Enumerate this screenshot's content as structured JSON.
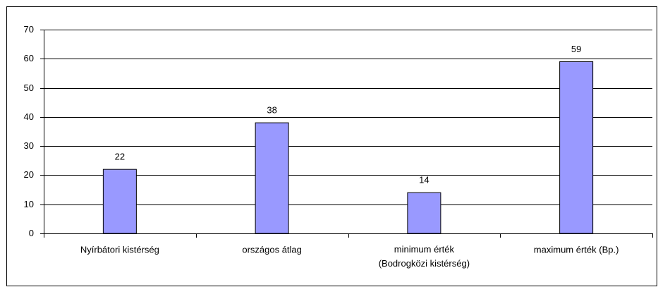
{
  "chart_data": {
    "type": "bar",
    "categories": [
      "Nyírbátori kistérség",
      "országos átlag",
      "minimum érték\n(Bodrogközi kistérség)",
      "maximum érték (Bp.)"
    ],
    "values": [
      22,
      38,
      14,
      59
    ],
    "color": "#9999ff",
    "ylim": [
      0,
      70
    ],
    "yticks": [
      0,
      10,
      20,
      30,
      40,
      50,
      60,
      70
    ],
    "grid": true
  }
}
